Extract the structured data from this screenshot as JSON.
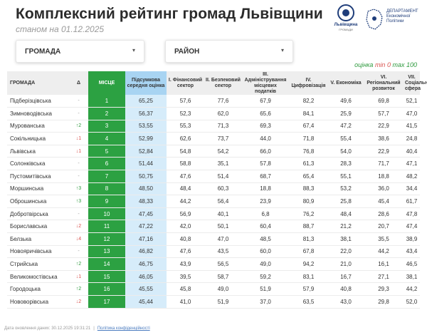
{
  "header": {
    "title": "Комплексний рейтинг громад Львівщини",
    "subtitle": "станом на 01.12.2025",
    "logo1": {
      "name": "Львівщина",
      "sub": "ГРОМАДИ"
    },
    "logo2": {
      "line1": "ДЕПАРТАМЕНТ",
      "line2": "Економічної",
      "line3": "Політики"
    }
  },
  "filters": {
    "hromada_label": "ГРОМАДА",
    "raion_label": "РАЙОН",
    "arrow": "▾"
  },
  "legend": {
    "prefix": "оцінка",
    "min": "min 0",
    "max": "max 100"
  },
  "colors": {
    "place_green": "#2ca142",
    "avg_blue": "#d6ecfa",
    "up": "#2e9a3e",
    "down": "#d9534f"
  },
  "table": {
    "headers": {
      "hromada": "ГРОМАДА",
      "delta": "Δ",
      "place": "МІСЦЕ",
      "avg": "Підсумкова середня оцінка",
      "c1": "I. Фінансовий сектор",
      "c2": "II. Безпековий сектор",
      "c3": "III. Адміністрування місцевих податків",
      "c4": "IV. Цифровізація",
      "c5": "V. Економіка",
      "c6": "VI. Регіональний розвиток",
      "c7": "VII. Соціальна сфера"
    },
    "rows": [
      {
        "name": "Підберізцівська",
        "delta": "-",
        "dir": "same",
        "place": "1",
        "avg": "65,25",
        "c1": "57,6",
        "c2": "77,6",
        "c3": "67,9",
        "c4": "82,2",
        "c5": "49,6",
        "c6": "69,8",
        "c7": "52,1"
      },
      {
        "name": "Зимноводівська",
        "delta": "-",
        "dir": "same",
        "place": "2",
        "avg": "56,37",
        "c1": "52,3",
        "c2": "62,0",
        "c3": "65,6",
        "c4": "84,1",
        "c5": "25,9",
        "c6": "57,7",
        "c7": "47,0"
      },
      {
        "name": "Мурованська",
        "delta": "↑2",
        "dir": "up",
        "place": "3",
        "avg": "53,55",
        "c1": "55,3",
        "c2": "71,3",
        "c3": "69,3",
        "c4": "67,4",
        "c5": "47,2",
        "c6": "22,9",
        "c7": "41,5"
      },
      {
        "name": "Сокільницька",
        "delta": "↓1",
        "dir": "down",
        "place": "4",
        "avg": "52,99",
        "c1": "62,6",
        "c2": "73,7",
        "c3": "44,0",
        "c4": "71,8",
        "c5": "55,4",
        "c6": "38,6",
        "c7": "24,8"
      },
      {
        "name": "Львівська",
        "delta": "↓1",
        "dir": "down",
        "place": "5",
        "avg": "52,84",
        "c1": "54,8",
        "c2": "54,2",
        "c3": "66,0",
        "c4": "76,8",
        "c5": "54,0",
        "c6": "22,9",
        "c7": "40,4"
      },
      {
        "name": "Солонківська",
        "delta": "-",
        "dir": "same",
        "place": "6",
        "avg": "51,44",
        "c1": "58,8",
        "c2": "35,1",
        "c3": "57,8",
        "c4": "61,3",
        "c5": "28,3",
        "c6": "71,7",
        "c7": "47,1"
      },
      {
        "name": "Пустомитівська",
        "delta": "-",
        "dir": "same",
        "place": "7",
        "avg": "50,75",
        "c1": "47,6",
        "c2": "51,4",
        "c3": "68,7",
        "c4": "65,4",
        "c5": "55,1",
        "c6": "18,8",
        "c7": "48,2"
      },
      {
        "name": "Моршинська",
        "delta": "↑3",
        "dir": "up",
        "place": "8",
        "avg": "48,50",
        "c1": "48,4",
        "c2": "60,3",
        "c3": "18,8",
        "c4": "88,3",
        "c5": "53,2",
        "c6": "36,0",
        "c7": "34,4"
      },
      {
        "name": "Оброшинська",
        "delta": "↑3",
        "dir": "up",
        "place": "9",
        "avg": "48,33",
        "c1": "44,2",
        "c2": "56,4",
        "c3": "23,9",
        "c4": "80,9",
        "c5": "25,8",
        "c6": "45,4",
        "c7": "61,7"
      },
      {
        "name": "Добротвірська",
        "delta": "-",
        "dir": "same",
        "place": "10",
        "avg": "47,45",
        "c1": "56,9",
        "c2": "40,1",
        "c3": "6,8",
        "c4": "76,2",
        "c5": "48,4",
        "c6": "28,6",
        "c7": "47,8"
      },
      {
        "name": "Бориславська",
        "delta": "↓2",
        "dir": "down",
        "place": "11",
        "avg": "47,22",
        "c1": "42,0",
        "c2": "50,1",
        "c3": "60,4",
        "c4": "88,7",
        "c5": "21,2",
        "c6": "20,7",
        "c7": "47,4"
      },
      {
        "name": "Белзька",
        "delta": "↓4",
        "dir": "down",
        "place": "12",
        "avg": "47,16",
        "c1": "40,8",
        "c2": "47,0",
        "c3": "48,5",
        "c4": "81,3",
        "c5": "38,1",
        "c6": "35,5",
        "c7": "38,9"
      },
      {
        "name": "Новояричівська",
        "delta": "-",
        "dir": "same",
        "place": "13",
        "avg": "46,82",
        "c1": "47,6",
        "c2": "43,5",
        "c3": "60,0",
        "c4": "67,8",
        "c5": "22,0",
        "c6": "44,2",
        "c7": "43,4"
      },
      {
        "name": "Стрийська",
        "delta": "↑2",
        "dir": "up",
        "place": "14",
        "avg": "46,75",
        "c1": "43,9",
        "c2": "56,5",
        "c3": "49,0",
        "c4": "94,2",
        "c5": "21,0",
        "c6": "16,1",
        "c7": "46,5"
      },
      {
        "name": "Великомостівська",
        "delta": "↓1",
        "dir": "down",
        "place": "15",
        "avg": "46,05",
        "c1": "39,5",
        "c2": "58,7",
        "c3": "59,2",
        "c4": "83,1",
        "c5": "16,7",
        "c6": "27,1",
        "c7": "38,1"
      },
      {
        "name": "Городоцька",
        "delta": "↑2",
        "dir": "up",
        "place": "16",
        "avg": "45,55",
        "c1": "45,8",
        "c2": "49,0",
        "c3": "51,9",
        "c4": "57,9",
        "c5": "40,8",
        "c6": "29,3",
        "c7": "44,2"
      },
      {
        "name": "Нововорівська",
        "delta": "↓2",
        "dir": "down",
        "place": "17",
        "avg": "45,44",
        "c1": "41,0",
        "c2": "51,9",
        "c3": "37,0",
        "c4": "63,5",
        "c5": "43,0",
        "c6": "29,8",
        "c7": "52,0"
      }
    ]
  },
  "footer": {
    "updated": "Дата оновлення даних: 30.12.2025 19:31:21",
    "sep": "|",
    "privacy": "Політика конфіденційності"
  }
}
